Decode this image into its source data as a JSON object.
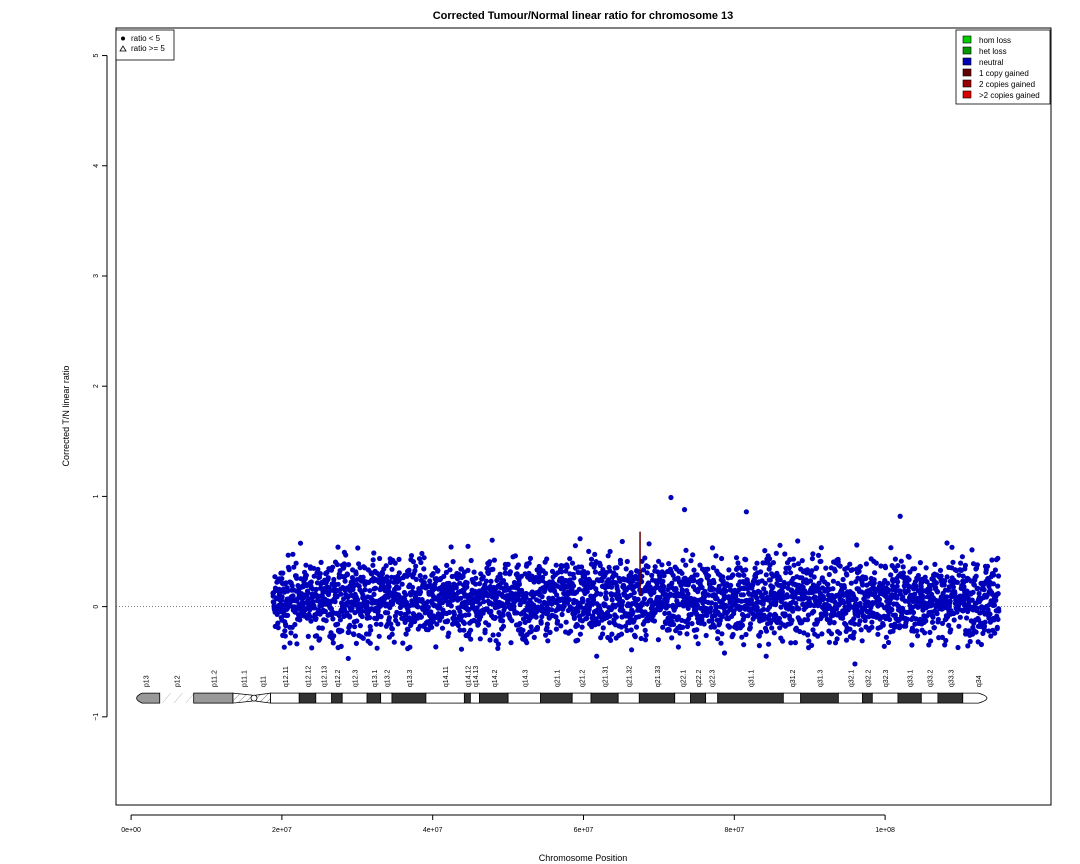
{
  "chart_data": {
    "type": "scatter",
    "title": "Corrected Tumour/Normal linear ratio for chromosome  13",
    "xlabel": "Chromosome Position",
    "ylabel": "Corrected T/N linear ratio",
    "xlim": [
      -2000000,
      122000000
    ],
    "ylim": [
      -1.8,
      5.25
    ],
    "x_ticks": [
      0,
      20000000,
      40000000,
      60000000,
      80000000,
      100000000
    ],
    "x_tick_labels": [
      "0e+00",
      "2e+07",
      "4e+07",
      "6e+07",
      "8e+07",
      "1e+08"
    ],
    "y_ticks": [
      -1,
      0,
      1,
      2,
      3,
      4,
      5
    ],
    "y_tick_labels": [
      "−1",
      "0",
      "1",
      "2",
      "3",
      "4",
      "5"
    ],
    "reference_line_y": 0,
    "grid": false,
    "shape_legend": {
      "placement": "top-left",
      "items": [
        {
          "symbol": "circle",
          "label": "ratio < 5"
        },
        {
          "symbol": "triangle",
          "label": "ratio >= 5"
        }
      ]
    },
    "color_legend": {
      "placement": "top-right",
      "items": [
        {
          "label": "hom loss",
          "color": "#00cc00"
        },
        {
          "label": "het loss",
          "color": "#009900"
        },
        {
          "label": "neutral",
          "color": "#0000bb"
        },
        {
          "label": "1 copy gained",
          "color": "#660000"
        },
        {
          "label": "2 copies gained",
          "color": "#990000"
        },
        {
          "label": ">2 copies gained",
          "color": "#dd0000"
        }
      ]
    },
    "series": [
      {
        "name": "neutral",
        "color": "#0000bb",
        "x_range": [
          18800000,
          115100000
        ],
        "y_baseline": 0.08,
        "y_band": [
          -0.45,
          0.85
        ],
        "outliers": [
          {
            "x": 71600000,
            "y": 0.99
          },
          {
            "x": 73400000,
            "y": 0.88
          },
          {
            "x": 81600000,
            "y": 0.86
          },
          {
            "x": 102000000,
            "y": 0.82
          },
          {
            "x": 28800000,
            "y": -0.47
          },
          {
            "x": 96000000,
            "y": -0.52
          }
        ]
      },
      {
        "name": "1 copy gained",
        "color": "#660000",
        "segment": {
          "x": 67500000,
          "y_range": [
            0.1,
            0.68
          ]
        }
      }
    ],
    "ideogram": {
      "y": -0.83,
      "bands": [
        {
          "name": "p13",
          "start": 0,
          "end": 3800000,
          "stain": "gvar"
        },
        {
          "name": "p12",
          "start": 3800000,
          "end": 8300000,
          "stain": "stalk"
        },
        {
          "name": "p11.2",
          "start": 8300000,
          "end": 13500000,
          "stain": "gvar"
        },
        {
          "name": "p11.1",
          "start": 13500000,
          "end": 16300000,
          "stain": "acen"
        },
        {
          "name": "q11",
          "start": 16300000,
          "end": 18500000,
          "stain": "acen"
        },
        {
          "name": "q12.11",
          "start": 18500000,
          "end": 22300000,
          "stain": "gneg"
        },
        {
          "name": "q12.12",
          "start": 22300000,
          "end": 24500000,
          "stain": "gpos"
        },
        {
          "name": "q12.13",
          "start": 24500000,
          "end": 26600000,
          "stain": "gneg"
        },
        {
          "name": "q12.2",
          "start": 26600000,
          "end": 28000000,
          "stain": "gpos"
        },
        {
          "name": "q12.3",
          "start": 28000000,
          "end": 31300000,
          "stain": "gneg"
        },
        {
          "name": "q13.1",
          "start": 31300000,
          "end": 33100000,
          "stain": "gpos"
        },
        {
          "name": "q13.2",
          "start": 33100000,
          "end": 34600000,
          "stain": "gneg"
        },
        {
          "name": "q13.3",
          "start": 34600000,
          "end": 39100000,
          "stain": "gpos"
        },
        {
          "name": "q14.11",
          "start": 39100000,
          "end": 44200000,
          "stain": "gneg"
        },
        {
          "name": "q14.12",
          "start": 44200000,
          "end": 45000000,
          "stain": "gpos"
        },
        {
          "name": "q14.13",
          "start": 45000000,
          "end": 46200000,
          "stain": "gneg"
        },
        {
          "name": "q14.2",
          "start": 46200000,
          "end": 50000000,
          "stain": "gpos"
        },
        {
          "name": "q14.3",
          "start": 50000000,
          "end": 54300000,
          "stain": "gneg"
        },
        {
          "name": "q21.1",
          "start": 54300000,
          "end": 58500000,
          "stain": "gpos"
        },
        {
          "name": "q21.2",
          "start": 58500000,
          "end": 61000000,
          "stain": "gneg"
        },
        {
          "name": "q21.31",
          "start": 61000000,
          "end": 64600000,
          "stain": "gpos"
        },
        {
          "name": "q21.32",
          "start": 64600000,
          "end": 67400000,
          "stain": "gneg"
        },
        {
          "name": "q21.33",
          "start": 67400000,
          "end": 72100000,
          "stain": "gpos"
        },
        {
          "name": "q22.1",
          "start": 72100000,
          "end": 74200000,
          "stain": "gneg"
        },
        {
          "name": "q22.2",
          "start": 74200000,
          "end": 76200000,
          "stain": "gpos"
        },
        {
          "name": "q22.3",
          "start": 76200000,
          "end": 77800000,
          "stain": "gneg"
        },
        {
          "name": "q31.1",
          "start": 77800000,
          "end": 86500000,
          "stain": "gpos"
        },
        {
          "name": "q31.2",
          "start": 86500000,
          "end": 88800000,
          "stain": "gneg"
        },
        {
          "name": "q31.3",
          "start": 88800000,
          "end": 93800000,
          "stain": "gpos"
        },
        {
          "name": "q32.1",
          "start": 93800000,
          "end": 97000000,
          "stain": "gneg"
        },
        {
          "name": "q32.2",
          "start": 97000000,
          "end": 98300000,
          "stain": "gpos"
        },
        {
          "name": "q32.3",
          "start": 98300000,
          "end": 101700000,
          "stain": "gneg"
        },
        {
          "name": "q33.1",
          "start": 101700000,
          "end": 104800000,
          "stain": "gpos"
        },
        {
          "name": "q33.2",
          "start": 104800000,
          "end": 107000000,
          "stain": "gneg"
        },
        {
          "name": "q33.3",
          "start": 107000000,
          "end": 110300000,
          "stain": "gpos"
        },
        {
          "name": "q34",
          "start": 110300000,
          "end": 114364328,
          "stain": "gneg"
        }
      ]
    }
  }
}
